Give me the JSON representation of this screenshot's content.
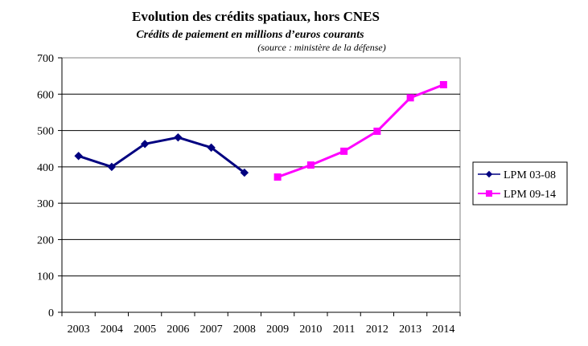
{
  "chart_data": {
    "type": "line",
    "title": "Evolution des crédits spatiaux, hors CNES",
    "subtitle": "Crédits de paiement en millions d’euros courants",
    "source": "(source : ministère de la défense)",
    "xlabel": "",
    "ylabel": "",
    "categories": [
      "2003",
      "2004",
      "2005",
      "2006",
      "2007",
      "2008",
      "2009",
      "2010",
      "2011",
      "2012",
      "2013",
      "2014"
    ],
    "ylim": [
      0,
      700
    ],
    "yticks": [
      0,
      100,
      200,
      300,
      400,
      500,
      600,
      700
    ],
    "grid": true,
    "legend_position": "right",
    "series": [
      {
        "name": "LPM 03-08",
        "color": "#000080",
        "marker": "diamond",
        "values": [
          430,
          400,
          463,
          481,
          453,
          384,
          null,
          null,
          null,
          null,
          null,
          null
        ]
      },
      {
        "name": "LPM 09-14",
        "color": "#ff00ff",
        "marker": "square",
        "values": [
          null,
          null,
          null,
          null,
          null,
          null,
          372,
          405,
          443,
          498,
          590,
          626
        ]
      }
    ]
  }
}
